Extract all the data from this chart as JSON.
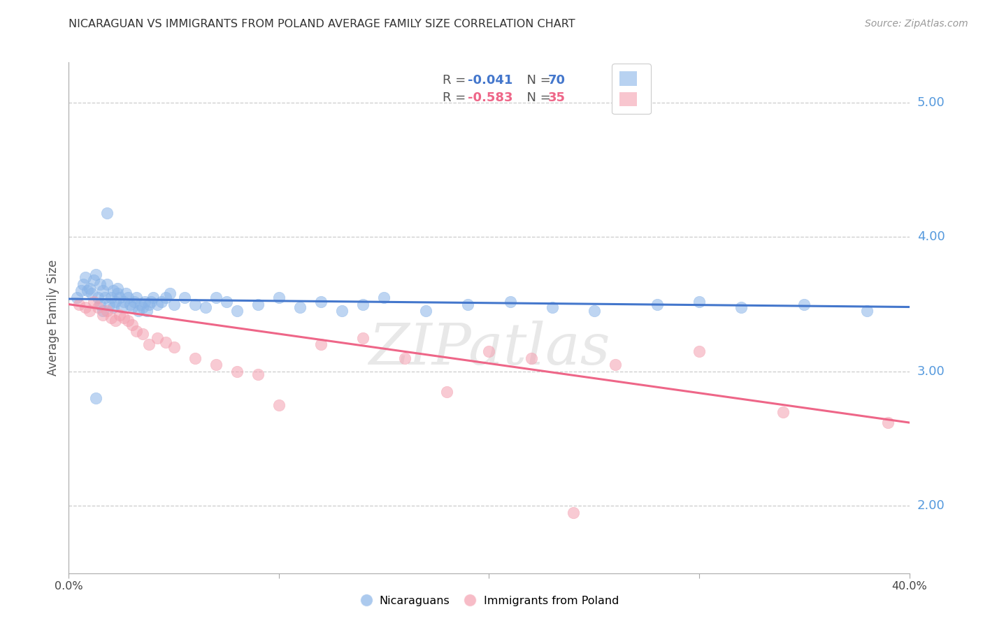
{
  "title": "NICARAGUAN VS IMMIGRANTS FROM POLAND AVERAGE FAMILY SIZE CORRELATION CHART",
  "source": "Source: ZipAtlas.com",
  "ylabel": "Average Family Size",
  "right_yticks": [
    2.0,
    3.0,
    4.0,
    5.0
  ],
  "background_color": "#ffffff",
  "grid_color": "#cccccc",
  "blue_color": "#89b4e8",
  "pink_color": "#f4a0b0",
  "blue_line_color": "#4477cc",
  "pink_line_color": "#ee6688",
  "right_tick_color": "#5599dd",
  "legend_R_blue": "-0.041",
  "legend_N_blue": "70",
  "legend_R_pink": "-0.583",
  "legend_N_pink": "35",
  "blue_scatter_x": [
    0.004,
    0.006,
    0.007,
    0.008,
    0.009,
    0.01,
    0.011,
    0.012,
    0.013,
    0.014,
    0.015,
    0.015,
    0.016,
    0.016,
    0.017,
    0.018,
    0.019,
    0.02,
    0.021,
    0.021,
    0.022,
    0.023,
    0.023,
    0.024,
    0.025,
    0.026,
    0.027,
    0.028,
    0.029,
    0.03,
    0.031,
    0.032,
    0.033,
    0.034,
    0.035,
    0.036,
    0.037,
    0.038,
    0.039,
    0.04,
    0.042,
    0.044,
    0.046,
    0.048,
    0.05,
    0.055,
    0.06,
    0.065,
    0.07,
    0.075,
    0.08,
    0.09,
    0.1,
    0.11,
    0.12,
    0.13,
    0.14,
    0.15,
    0.17,
    0.19,
    0.21,
    0.23,
    0.25,
    0.28,
    0.3,
    0.32,
    0.35,
    0.38,
    0.013,
    0.018
  ],
  "blue_scatter_y": [
    3.55,
    3.6,
    3.65,
    3.7,
    3.6,
    3.62,
    3.58,
    3.68,
    3.72,
    3.55,
    3.65,
    3.5,
    3.6,
    3.45,
    3.55,
    3.65,
    3.5,
    3.55,
    3.6,
    3.48,
    3.52,
    3.58,
    3.62,
    3.55,
    3.48,
    3.52,
    3.58,
    3.55,
    3.5,
    3.48,
    3.52,
    3.55,
    3.45,
    3.5,
    3.48,
    3.52,
    3.45,
    3.5,
    3.52,
    3.55,
    3.5,
    3.52,
    3.55,
    3.58,
    3.5,
    3.55,
    3.5,
    3.48,
    3.55,
    3.52,
    3.45,
    3.5,
    3.55,
    3.48,
    3.52,
    3.45,
    3.5,
    3.55,
    3.45,
    3.5,
    3.52,
    3.48,
    3.45,
    3.5,
    3.52,
    3.48,
    3.5,
    3.45,
    2.8,
    4.18
  ],
  "pink_scatter_x": [
    0.005,
    0.008,
    0.01,
    0.012,
    0.014,
    0.016,
    0.018,
    0.02,
    0.022,
    0.024,
    0.026,
    0.028,
    0.03,
    0.032,
    0.035,
    0.038,
    0.042,
    0.046,
    0.05,
    0.06,
    0.07,
    0.08,
    0.09,
    0.1,
    0.12,
    0.14,
    0.16,
    0.18,
    0.2,
    0.22,
    0.24,
    0.26,
    0.3,
    0.34,
    0.39
  ],
  "pink_scatter_y": [
    3.5,
    3.48,
    3.45,
    3.52,
    3.48,
    3.42,
    3.45,
    3.4,
    3.38,
    3.42,
    3.4,
    3.38,
    3.35,
    3.3,
    3.28,
    3.2,
    3.25,
    3.22,
    3.18,
    3.1,
    3.05,
    3.0,
    2.98,
    2.75,
    3.2,
    3.25,
    3.1,
    2.85,
    3.15,
    3.1,
    1.95,
    3.05,
    3.15,
    2.7,
    2.62
  ],
  "blue_line_x": [
    0.0,
    0.4
  ],
  "blue_line_y": [
    3.54,
    3.48
  ],
  "pink_line_x": [
    0.0,
    0.4
  ],
  "pink_line_y": [
    3.5,
    2.62
  ],
  "xlim": [
    0.0,
    0.4
  ],
  "ylim": [
    1.5,
    5.3
  ]
}
